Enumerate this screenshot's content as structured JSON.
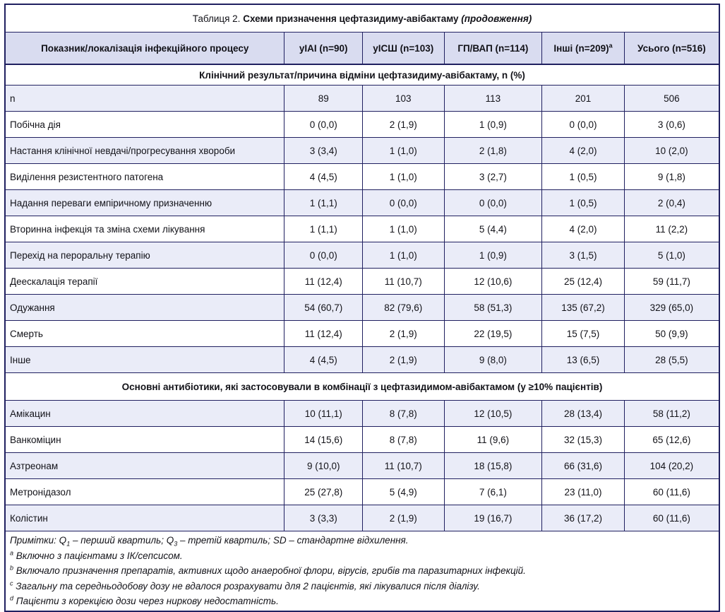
{
  "colors": {
    "border": "#202060",
    "header_bg": "#d9dcf0",
    "row_alt_bg": "#eaecf8",
    "text": "#121218"
  },
  "table": {
    "title": {
      "prefix": "Таблиця 2.",
      "main": "Схеми призначення цефтазидиму-авібактаму",
      "suffix": "(продовження)"
    },
    "columns": [
      {
        "label": "Показник/локалізація інфекційного процесу",
        "sup": ""
      },
      {
        "label": "уІАІ (n=90)",
        "sup": ""
      },
      {
        "label": "уІСШ (n=103)",
        "sup": ""
      },
      {
        "label": "ГП/ВАП (n=114)",
        "sup": ""
      },
      {
        "label": "Інші (n=209)",
        "sup": "a"
      },
      {
        "label": "Усього (n=516)",
        "sup": ""
      }
    ],
    "sections": [
      {
        "header": "Клінічний результат/причина відміни цефтазидиму-авібактаму, n (%)",
        "rows": [
          {
            "label": "n",
            "values": [
              "89",
              "103",
              "113",
              "201",
              "506"
            ]
          },
          {
            "label": "Побічна дія",
            "values": [
              "0 (0,0)",
              "2 (1,9)",
              "1 (0,9)",
              "0 (0,0)",
              "3 (0,6)"
            ]
          },
          {
            "label": "Настання клінічної невдачі/прогресування хвороби",
            "values": [
              "3 (3,4)",
              "1 (1,0)",
              "2 (1,8)",
              "4 (2,0)",
              "10 (2,0)"
            ]
          },
          {
            "label": "Виділення резистентного патогена",
            "values": [
              "4 (4,5)",
              "1 (1,0)",
              "3 (2,7)",
              "1 (0,5)",
              "9 (1,8)"
            ]
          },
          {
            "label": "Надання переваги емпіричному призначенню",
            "values": [
              "1 (1,1)",
              "0 (0,0)",
              "0 (0,0)",
              "1 (0,5)",
              "2 (0,4)"
            ]
          },
          {
            "label": "Вторинна інфекція та зміна схеми лікування",
            "values": [
              "1 (1,1)",
              "1 (1,0)",
              "5 (4,4)",
              "4 (2,0)",
              "11 (2,2)"
            ]
          },
          {
            "label": "Перехід на пероральну терапію",
            "values": [
              "0 (0,0)",
              "1 (1,0)",
              "1 (0,9)",
              "3 (1,5)",
              "5 (1,0)"
            ]
          },
          {
            "label": "Деескалація терапії",
            "values": [
              "11 (12,4)",
              "11 (10,7)",
              "12 (10,6)",
              "25 (12,4)",
              "59 (11,7)"
            ]
          },
          {
            "label": "Одужання",
            "values": [
              "54 (60,7)",
              "82 (79,6)",
              "58 (51,3)",
              "135 (67,2)",
              "329 (65,0)"
            ]
          },
          {
            "label": "Смерть",
            "values": [
              "11 (12,4)",
              "2 (1,9)",
              "22 (19,5)",
              "15 (7,5)",
              "50 (9,9)"
            ]
          },
          {
            "label": "Інше",
            "values": [
              "4 (4,5)",
              "2 (1,9)",
              "9 (8,0)",
              "13 (6,5)",
              "28 (5,5)"
            ]
          }
        ]
      },
      {
        "header": "Основні антибіотики, які застосовували в комбінації з цефтазидимом-авібактамом (у ≥10% пацієнтів)",
        "rows": [
          {
            "label": "Амікацин",
            "values": [
              "10 (11,1)",
              "8 (7,8)",
              "12 (10,5)",
              "28 (13,4)",
              "58 (11,2)"
            ]
          },
          {
            "label": "Ванкоміцин",
            "values": [
              "14 (15,6)",
              "8 (7,8)",
              "11 (9,6)",
              "32 (15,3)",
              "65 (12,6)"
            ]
          },
          {
            "label": "Азтреонам",
            "values": [
              "9 (10,0)",
              "11 (10,7)",
              "18 (15,8)",
              "66 (31,6)",
              "104 (20,2)"
            ]
          },
          {
            "label": "Метронідазол",
            "values": [
              "25 (27,8)",
              "5 (4,9)",
              "7 (6,1)",
              "23 (11,0)",
              "60 (11,6)"
            ]
          },
          {
            "label": "Колістин",
            "values": [
              "3 (3,3)",
              "2 (1,9)",
              "19 (16,7)",
              "36 (17,2)",
              "60 (11,6)"
            ]
          }
        ]
      }
    ],
    "footnotes": [
      {
        "marker": "",
        "segments": [
          {
            "text": "Примітки: Q"
          },
          {
            "text": "1",
            "sub": true
          },
          {
            "text": " – перший квартиль; Q"
          },
          {
            "text": "3",
            "sub": true
          },
          {
            "text": " – третій квартиль; SD – стандартне відхилення."
          }
        ]
      },
      {
        "marker": "a",
        "segments": [
          {
            "text": "Включно з пацієнтами з ІК/сепсисом."
          }
        ]
      },
      {
        "marker": "b",
        "segments": [
          {
            "text": "Включало призначення препаратів, активних щодо анаеробної флори, вірусів, грибів та паразитарних інфекцій."
          }
        ]
      },
      {
        "marker": "c",
        "segments": [
          {
            "text": "Загальну та середньодобову дозу не вдалося розрахувати для 2 пацієнтів, які лікувалися після діалізу."
          }
        ]
      },
      {
        "marker": "d",
        "segments": [
          {
            "text": "Пацієнти з корекцією дози через ниркову недостатність."
          }
        ]
      }
    ]
  }
}
